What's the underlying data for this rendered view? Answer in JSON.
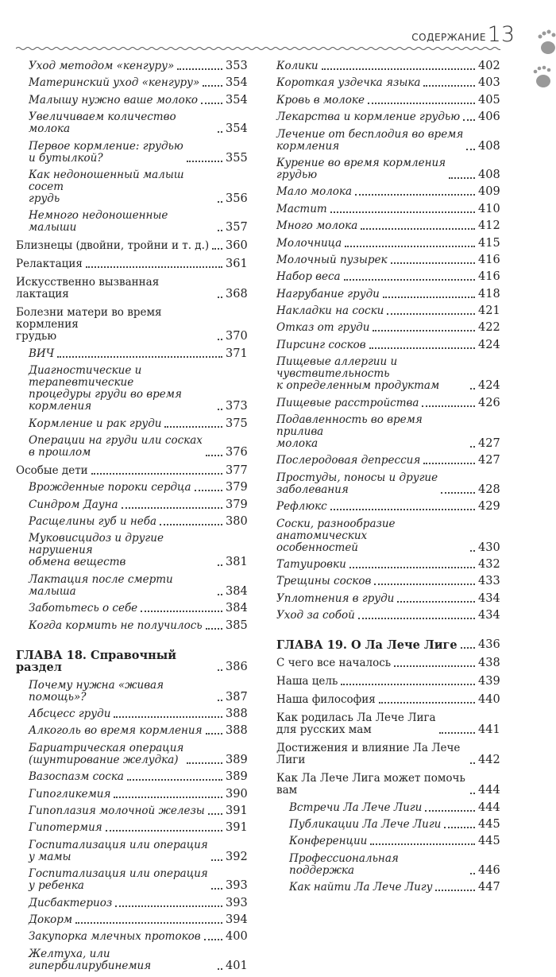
{
  "header": {
    "section": "СОДЕРЖАНИЕ",
    "page_number": "13"
  },
  "left": [
    {
      "t": "Уход методом «кенгуру»",
      "p": "353",
      "s": "ii"
    },
    {
      "t": "Материнский уход «кенгуру»",
      "p": "354",
      "s": "ii"
    },
    {
      "t": "Малышу нужно ваше молоко",
      "p": "354",
      "s": "ii"
    },
    {
      "t": "Увеличиваем количество молока",
      "p": "354",
      "s": "ii"
    },
    {
      "t": "Первое кормление: грудью\nи бутылкой?",
      "p": "355",
      "s": "ii"
    },
    {
      "t": "Как недоношенный малыш сосет\nгрудь",
      "p": "356",
      "s": "ii"
    },
    {
      "t": "Немного недоношенные малыши",
      "p": "357",
      "s": "ii"
    },
    {
      "t": "Близнецы  (двойни, тройни и т. д.)",
      "p": "360",
      "s": "n"
    },
    {
      "t": "Релактация",
      "p": "361",
      "s": "n"
    },
    {
      "t": "Искусственно вызванная лактация",
      "p": "368",
      "s": "n"
    },
    {
      "t": "Болезни матери во время кормления\nгрудью",
      "p": "370",
      "s": "n"
    },
    {
      "t": "ВИЧ",
      "p": "371",
      "s": "ii"
    },
    {
      "t": "Диагностические и терапевтические\nпроцедуры груди во время кормления",
      "p": "373",
      "s": "ii"
    },
    {
      "t": "Кормление и рак груди",
      "p": "375",
      "s": "ii"
    },
    {
      "t": "Операции на груди или сосках\nв прошлом",
      "p": "376",
      "s": "ii"
    },
    {
      "t": "Особые дети",
      "p": "377",
      "s": "n"
    },
    {
      "t": "Врожденные пороки сердца",
      "p": "379",
      "s": "ii"
    },
    {
      "t": "Синдром Дауна",
      "p": "379",
      "s": "ii"
    },
    {
      "t": "Расщелины губ и неба",
      "p": "380",
      "s": "ii"
    },
    {
      "t": "Муковисцидоз и другие нарушения\nобмена веществ",
      "p": "381",
      "s": "ii"
    },
    {
      "t": "Лактация после смерти малыша",
      "p": "384",
      "s": "ii"
    },
    {
      "t": "Заботьтесь о себе",
      "p": "384",
      "s": "ii"
    },
    {
      "t": "Когда кормить не получилось",
      "p": "385",
      "s": "ii"
    },
    {
      "t": "ГЛАВА 18. Справочный раздел",
      "p": "386",
      "s": "b"
    },
    {
      "t": "Почему нужна «живая помощь»?",
      "p": "387",
      "s": "ii"
    },
    {
      "t": "Абсцесс груди",
      "p": "388",
      "s": "ii"
    },
    {
      "t": "Алкоголь во время кормления",
      "p": "388",
      "s": "ii"
    },
    {
      "t": "Бариатрическая операция\n(шунтирование желудка)",
      "p": "389",
      "s": "ii"
    },
    {
      "t": "Вазоспазм соска",
      "p": "389",
      "s": "ii"
    },
    {
      "t": "Гипогликемия",
      "p": "390",
      "s": "ii"
    },
    {
      "t": "Гипоплазия молочной железы",
      "p": "391",
      "s": "ii"
    },
    {
      "t": "Гипотермия",
      "p": "391",
      "s": "ii"
    },
    {
      "t": "Госпитализация или операция\nу мамы",
      "p": "392",
      "s": "ii"
    },
    {
      "t": "Госпитализация или операция\nу ребенка",
      "p": "393",
      "s": "ii"
    },
    {
      "t": "Дисбактериоз",
      "p": "393",
      "s": "ii"
    },
    {
      "t": "Докорм",
      "p": "394",
      "s": "ii"
    },
    {
      "t": "Закупорка млечных протоков",
      "p": "400",
      "s": "ii"
    },
    {
      "t": "Желтуха, или гипербилирубинемия",
      "p": "401",
      "s": "ii"
    }
  ],
  "right": [
    {
      "t": "Колики",
      "p": "402",
      "s": "i"
    },
    {
      "t": "Короткая уздечка языка",
      "p": "403",
      "s": "i"
    },
    {
      "t": "Кровь в молоке",
      "p": "405",
      "s": "i"
    },
    {
      "t": "Лекарства и кормление грудью",
      "p": "406",
      "s": "i"
    },
    {
      "t": "Лечение от бесплодия во время\nкормления",
      "p": "408",
      "s": "i"
    },
    {
      "t": "Курение во время кормления\nгрудью",
      "p": "408",
      "s": "i"
    },
    {
      "t": "Мало молока",
      "p": "409",
      "s": "i"
    },
    {
      "t": "Мастит",
      "p": "410",
      "s": "i"
    },
    {
      "t": "Много молока",
      "p": "412",
      "s": "i"
    },
    {
      "t": "Молочница",
      "p": "415",
      "s": "i"
    },
    {
      "t": "Молочный пузырек",
      "p": "416",
      "s": "i"
    },
    {
      "t": "Набор веса",
      "p": "416",
      "s": "i"
    },
    {
      "t": "Нагрубание груди",
      "p": "418",
      "s": "i"
    },
    {
      "t": "Накладки на соски",
      "p": "421",
      "s": "i"
    },
    {
      "t": "Отказ от груди",
      "p": "422",
      "s": "i"
    },
    {
      "t": "Пирсинг сосков",
      "p": "424",
      "s": "i"
    },
    {
      "t": "Пищевые аллергии и чувствительность\nк определенным продуктам",
      "p": "424",
      "s": "i"
    },
    {
      "t": "Пищевые расстройства",
      "p": "426",
      "s": "i"
    },
    {
      "t": "Подавленность во время прилива\nмолока",
      "p": "427",
      "s": "i"
    },
    {
      "t": "Послеродовая депрессия",
      "p": "427",
      "s": "i"
    },
    {
      "t": "Простуды, поносы и другие\nзаболевания",
      "p": "428",
      "s": "i"
    },
    {
      "t": "Рефлюкс",
      "p": "429",
      "s": "i"
    },
    {
      "t": "Соски, разнообразие анатомических\nособенностей",
      "p": "430",
      "s": "i"
    },
    {
      "t": "Татуировки",
      "p": "432",
      "s": "i"
    },
    {
      "t": "Трещины сосков",
      "p": "433",
      "s": "i"
    },
    {
      "t": "Уплотнения в груди",
      "p": "434",
      "s": "i"
    },
    {
      "t": "Уход за собой",
      "p": "434",
      "s": "i"
    },
    {
      "t": "ГЛАВА 19.  О Ла Лече Лиге",
      "p": "436",
      "s": "b"
    },
    {
      "t": "С чего все началось",
      "p": "438",
      "s": "n"
    },
    {
      "t": "Наша цель",
      "p": "439",
      "s": "n"
    },
    {
      "t": "Наша философия",
      "p": "440",
      "s": "n"
    },
    {
      "t": "Как родилась Ла Лече Лига\nдля русских мам",
      "p": "441",
      "s": "n"
    },
    {
      "t": "Достижения и влияние Ла Лече Лиги",
      "p": "442",
      "s": "n"
    },
    {
      "t": "Как Ла Лече Лига может помочь вам",
      "p": "444",
      "s": "n"
    },
    {
      "t": "Встречи Ла Лече Лиги",
      "p": "444",
      "s": "ii"
    },
    {
      "t": "Публикации Ла Лече Лиги",
      "p": "445",
      "s": "ii"
    },
    {
      "t": "Конференции",
      "p": "445",
      "s": "ii"
    },
    {
      "t": "Профессиональная поддержка",
      "p": "446",
      "s": "ii"
    },
    {
      "t": "Как найти Ла Лече Лигу",
      "p": "447",
      "s": "ii"
    }
  ]
}
